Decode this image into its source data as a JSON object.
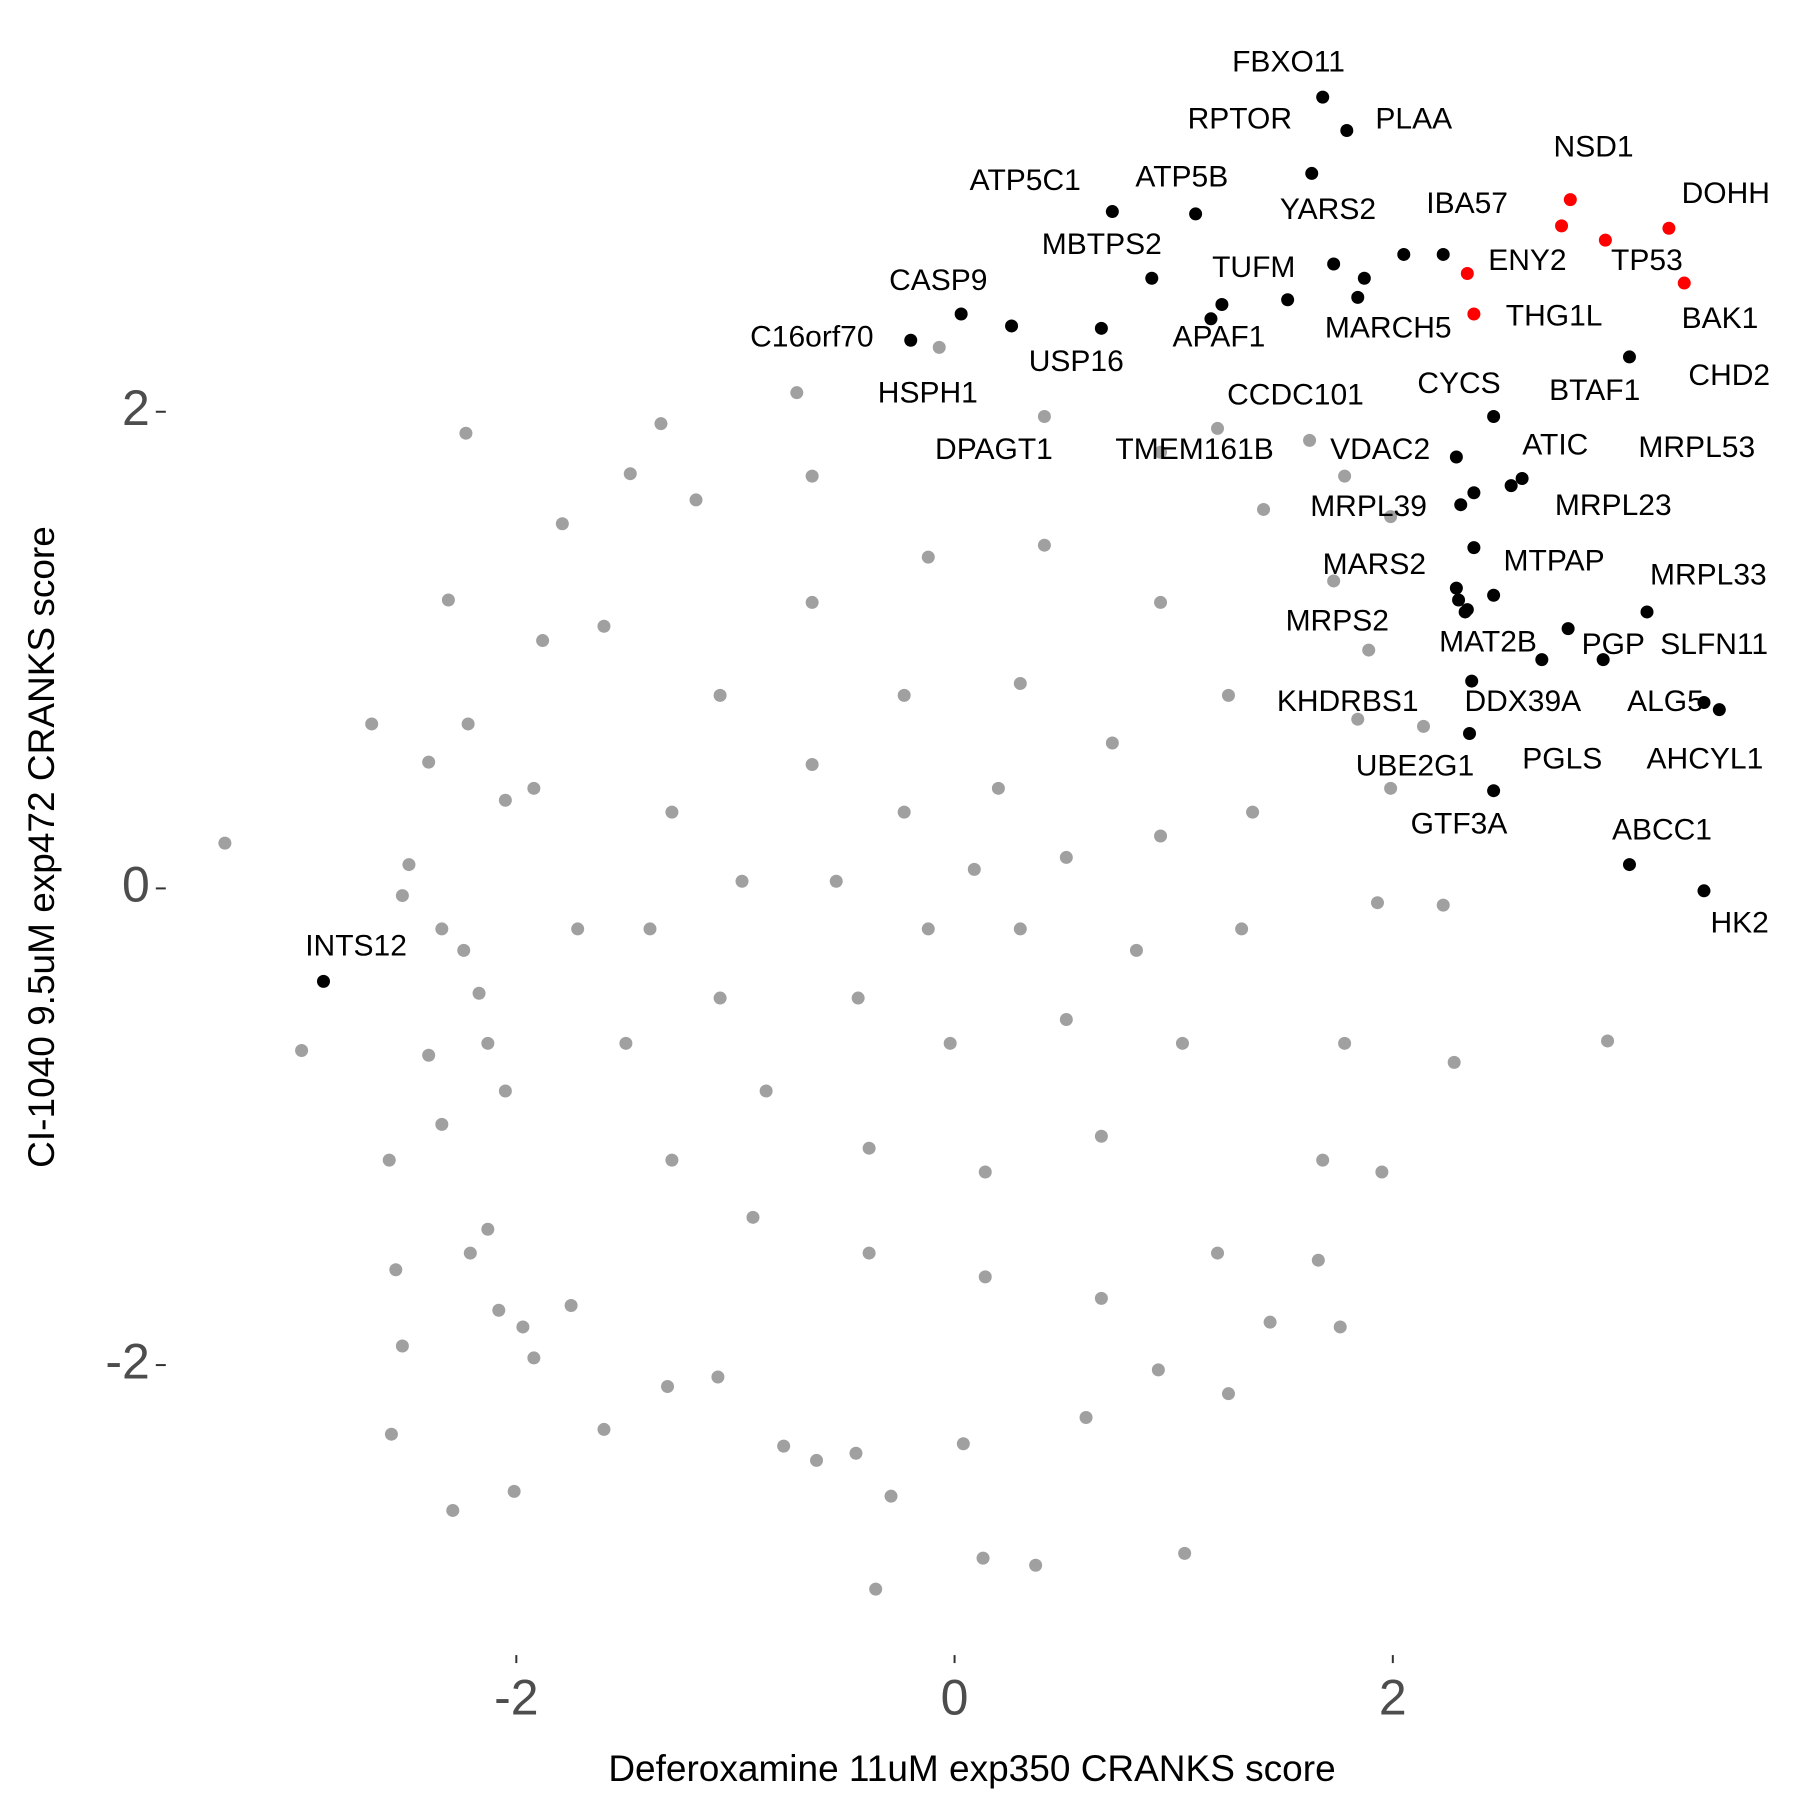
{
  "chart_data": {
    "type": "scatter",
    "x_label": "Deferoxamine 11uM exp350 CRANKS score",
    "y_label": "CI-1040 9.5uM exp472 CRANKS score",
    "xlim": [
      -3.7,
      3.8
    ],
    "ylim": [
      -3.2,
      3.55
    ],
    "xticks": [
      -2,
      0,
      2
    ],
    "yticks": [
      -2,
      0,
      2
    ],
    "grid": false,
    "series": [
      {
        "color": "#a0a0a0",
        "x": [
          -3.33,
          -2.23,
          -1.34,
          -0.72,
          -1.48,
          -1.79,
          -2.31,
          -1.88,
          -2.66,
          -2.22,
          -2.4,
          -2.49,
          -2.52,
          -2.34,
          -2.98,
          -2.4,
          -2.34,
          -2.58,
          -2.55,
          -2.21,
          -2.52,
          -2.57,
          -2.01,
          -2.29,
          -0.36,
          0.13,
          0.37,
          1.05,
          -0.29,
          0.04,
          0.6,
          2.98,
          1.95,
          1.76,
          1.66,
          2.28,
          2.23,
          1.93,
          2.14,
          1.99,
          1.78,
          1.44,
          0.93,
          1.25,
          -1.31,
          -1.6,
          -1.08,
          -0.78,
          -0.63,
          -0.45,
          -1.75,
          -2.08,
          -1.92,
          -1.97,
          -2.13,
          -2.05,
          -2.13,
          -2.17,
          -2.24,
          -1.92,
          -2.05,
          -1.72,
          -1.6,
          -1.18,
          -0.65,
          -0.07,
          0.41,
          0.94,
          1.2,
          1.62,
          1.41,
          1.73,
          1.89,
          1.84,
          1.99,
          1.78,
          1.68,
          1.2,
          0.67,
          0.14,
          -0.39,
          -0.92,
          -1.29,
          -1.5,
          -1.39,
          -1.29,
          -1.07,
          -0.65,
          -0.12,
          0.41,
          0.94,
          1.25,
          1.36,
          1.31,
          1.04,
          0.67,
          0.14,
          -0.39,
          -0.86,
          -1.07,
          -0.97,
          -0.65,
          -0.23,
          0.3,
          0.72,
          0.94,
          0.83,
          0.51,
          -0.02,
          -0.44,
          -0.54,
          -0.23,
          0.2,
          0.51,
          0.3,
          -0.12,
          0.09
        ],
        "y": [
          0.19,
          1.91,
          1.95,
          2.08,
          1.74,
          1.53,
          1.21,
          1.04,
          0.69,
          0.69,
          0.53,
          0.1,
          -0.03,
          -0.17,
          -0.68,
          -0.7,
          -0.99,
          -1.14,
          -1.6,
          -1.53,
          -1.92,
          -2.29,
          -2.53,
          -2.61,
          -2.94,
          -2.81,
          -2.84,
          -2.79,
          -2.55,
          -2.33,
          -2.22,
          -0.64,
          -1.19,
          -1.84,
          -1.56,
          -0.73,
          -0.07,
          -0.06,
          0.68,
          1.56,
          1.73,
          -1.82,
          -2.02,
          -2.12,
          -2.09,
          -2.27,
          -2.05,
          -2.34,
          -2.4,
          -2.37,
          -1.75,
          -1.77,
          -1.97,
          -1.84,
          -1.43,
          -0.85,
          -0.65,
          -0.44,
          -0.26,
          0.42,
          0.37,
          -0.17,
          1.1,
          1.63,
          1.73,
          2.27,
          1.98,
          1.83,
          1.93,
          1.88,
          1.59,
          1.29,
          1.0,
          0.71,
          0.42,
          -0.65,
          -1.14,
          -1.53,
          -1.72,
          -1.63,
          -1.53,
          -1.38,
          -1.14,
          -0.65,
          -0.17,
          0.32,
          0.81,
          1.2,
          1.39,
          1.44,
          1.2,
          0.81,
          0.32,
          -0.17,
          -0.65,
          -1.04,
          -1.19,
          -1.09,
          -0.85,
          -0.46,
          0.03,
          0.52,
          0.81,
          0.86,
          0.61,
          0.22,
          -0.26,
          -0.55,
          -0.65,
          -0.46,
          0.03,
          0.32,
          0.42,
          0.13,
          -0.17,
          -0.17,
          0.08
        ]
      },
      {
        "color": "#000000",
        "labels": [
          "FBXO11",
          "PLAA",
          "RPTOR",
          "ATP5C1",
          "ATP5B",
          "YARS2",
          "MBTPS2",
          "TUFM",
          "IBA57",
          "CHD2",
          "MARCH5",
          "CCDC101",
          "CASP9",
          "C16orf70",
          "HSPH1",
          "USP16",
          "APAF1",
          "DPAGT1",
          "CYCS",
          "BTAF1",
          "VDAC2",
          "TMEM161B",
          "MRPL39",
          "ATIC",
          "MRPL53",
          "MRPL23",
          "MARS2",
          "MTPAP",
          "MRPS2",
          "MRPL33",
          "PGP",
          "SLFN11",
          "MAT2B",
          "KHDRBS1",
          "DDX39A",
          "PGLS",
          "UBE2G1",
          "GTF3A",
          "AHCYL1",
          "ALG5",
          "ABCC1",
          "HK2",
          "INTS12"
        ],
        "x": [
          1.68,
          1.79,
          1.63,
          0.72,
          1.1,
          1.73,
          0.9,
          1.52,
          2.23,
          2.05,
          1.87,
          1.84,
          0.03,
          -0.2,
          0.26,
          0.67,
          1.22,
          1.17,
          2.46,
          3.08,
          2.29,
          2.37,
          2.31,
          2.54,
          2.59,
          2.37,
          2.29,
          2.46,
          2.34,
          3.16,
          2.8,
          2.96,
          2.33,
          2.3,
          2.68,
          2.36,
          2.35,
          2.46,
          3.49,
          3.42,
          3.08,
          3.42,
          -2.88
        ],
        "y": [
          3.32,
          3.18,
          3.0,
          2.84,
          2.83,
          2.62,
          2.56,
          2.47,
          2.66,
          2.66,
          2.56,
          2.48,
          2.41,
          2.3,
          2.36,
          2.35,
          2.45,
          2.39,
          1.98,
          2.23,
          1.81,
          1.66,
          1.61,
          1.69,
          1.72,
          1.43,
          1.26,
          1.23,
          1.17,
          1.16,
          1.09,
          0.96,
          1.16,
          1.21,
          0.96,
          0.87,
          0.65,
          0.41,
          0.75,
          0.78,
          0.1,
          -0.01,
          -0.39
        ]
      },
      {
        "color": "#ff0000",
        "labels": [
          "NSD1",
          null,
          "TP53",
          "DOHH",
          "BAK1",
          "ENY2",
          "THG1L"
        ],
        "x": [
          2.81,
          2.77,
          2.97,
          3.26,
          3.33,
          2.34,
          2.37
        ],
        "y": [
          2.89,
          2.78,
          2.72,
          2.77,
          2.54,
          2.58,
          2.41
        ]
      }
    ]
  }
}
